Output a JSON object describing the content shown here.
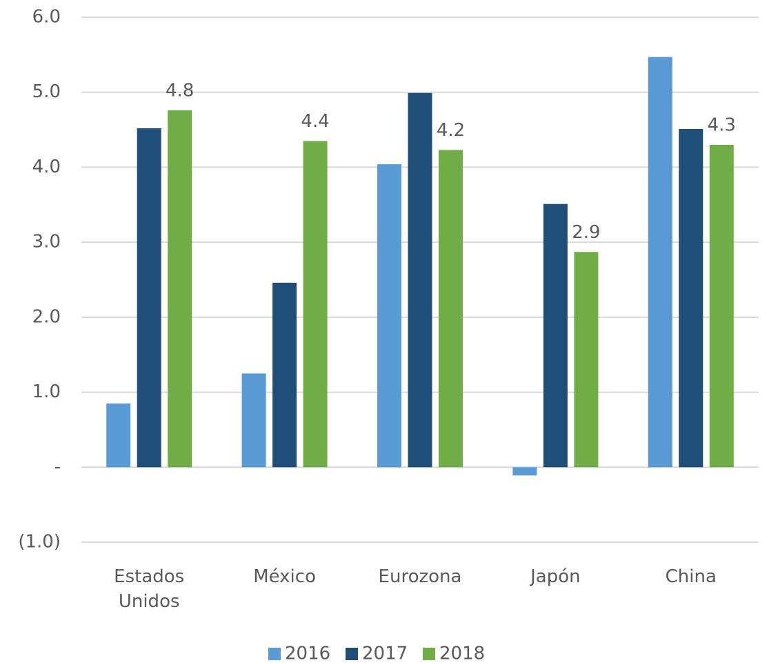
{
  "chart_data": {
    "type": "bar",
    "categories": [
      "Estados Unidos",
      "México",
      "Eurozona",
      "Japón",
      "China"
    ],
    "series": [
      {
        "name": "2016",
        "color": "#5b9bd5",
        "values": [
          0.85,
          1.25,
          4.04,
          -0.11,
          5.47
        ]
      },
      {
        "name": "2017",
        "color": "#1f4e79",
        "values": [
          4.52,
          2.46,
          4.99,
          3.51,
          4.51
        ]
      },
      {
        "name": "2018",
        "color": "#70ad47",
        "values": [
          4.76,
          4.35,
          4.23,
          2.87,
          4.3
        ],
        "value_labels": [
          "4.8",
          "4.4",
          "4.2",
          "2.9",
          "4.3"
        ]
      }
    ],
    "ylim": [
      -1,
      6
    ],
    "yticks": [
      {
        "value": -1,
        "label": "(1.0)"
      },
      {
        "value": 0,
        "label": "-"
      },
      {
        "value": 1,
        "label": "1.0"
      },
      {
        "value": 2,
        "label": "2.0"
      },
      {
        "value": 3,
        "label": "3.0"
      },
      {
        "value": 4,
        "label": "4.0"
      },
      {
        "value": 5,
        "label": "5.0"
      },
      {
        "value": 6,
        "label": "6.0"
      }
    ],
    "grid": true
  }
}
